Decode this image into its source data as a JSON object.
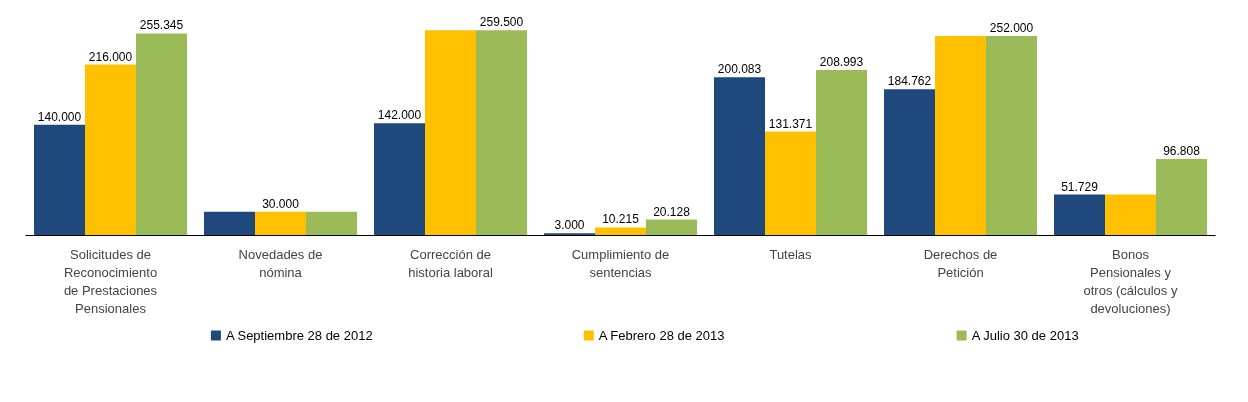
{
  "chart_data": {
    "type": "bar",
    "categories": [
      "Solicitudes de\nReconocimiento\nde Prestaciones\nPensionales",
      "Novedades de\nnómina",
      "Corrección de\nhistoria laboral",
      "Cumplimiento de\nsentencias",
      "Tutelas",
      "Derechos de\nPetición",
      "Bonos\nPensionales y\notros (cálculos y\ndevoluciones)"
    ],
    "series": [
      {
        "name": "A Septiembre 28 de 2012",
        "color": "#1f497d",
        "values": [
          140000,
          30000,
          142000,
          3000,
          200083,
          184762,
          51729
        ],
        "value_labels": [
          "140.000",
          null,
          "142.000",
          "3.000",
          "200.083",
          "184.762",
          "51.729"
        ]
      },
      {
        "name": "A Febrero 28 de 2013",
        "color": "#ffc000",
        "values": [
          216000,
          30000,
          259500,
          10215,
          131371,
          252000,
          51729
        ],
        "value_labels": [
          "216.000",
          "30.000",
          null,
          "10.215",
          "131.371",
          null,
          null
        ]
      },
      {
        "name": "A Julio 30 de 2013",
        "color": "#9bbb59",
        "values": [
          255345,
          30000,
          259500,
          20128,
          208993,
          252000,
          96808
        ],
        "value_labels": [
          "255.345",
          null,
          "259.500",
          "20.128",
          "208.993",
          "252.000",
          "96.808"
        ]
      }
    ],
    "legend": "bottom",
    "grid": false
  }
}
